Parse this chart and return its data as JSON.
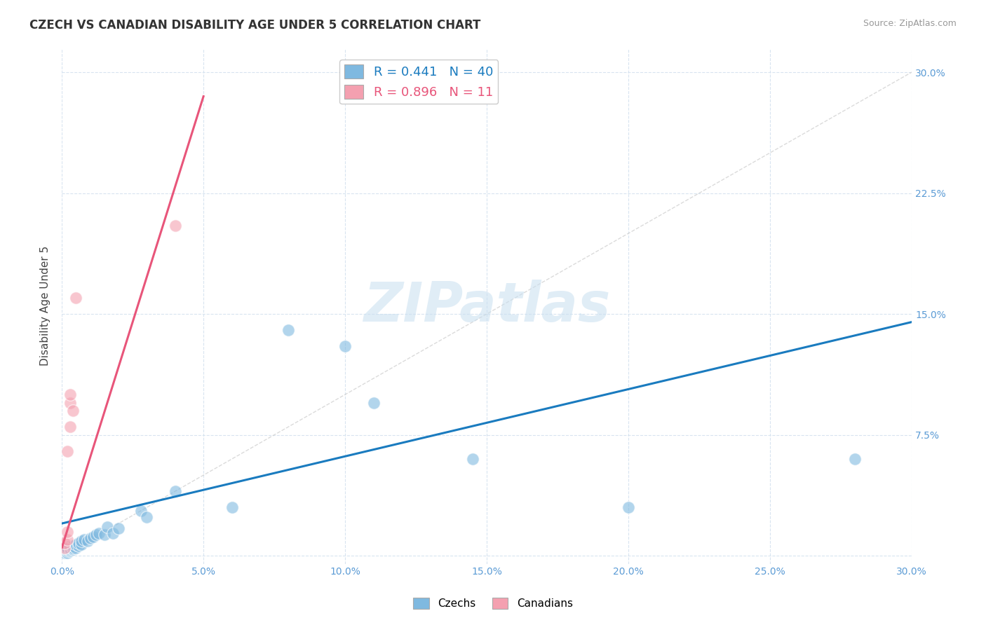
{
  "title": "CZECH VS CANADIAN DISABILITY AGE UNDER 5 CORRELATION CHART",
  "source": "Source: ZipAtlas.com",
  "ylabel": "Disability Age Under 5",
  "xmin": 0.0,
  "xmax": 0.3,
  "ymin": -0.005,
  "ymax": 0.315,
  "background_color": "#ffffff",
  "grid_color": "#d8e4f0",
  "legend_r1": "0.441",
  "legend_n1": "40",
  "legend_r2": "0.896",
  "legend_n2": "11",
  "blue_scatter_color": "#7fb9e0",
  "pink_scatter_color": "#f4a0b0",
  "blue_line_color": "#1a7bbf",
  "pink_line_color": "#e8557a",
  "diag_line_color": "#cccccc",
  "tick_label_color": "#5b9bd5",
  "ylabel_color": "#444444",
  "title_color": "#333333",
  "source_color": "#999999",
  "czechs_scatter": [
    [
      0.001,
      0.002
    ],
    [
      0.001,
      0.003
    ],
    [
      0.001,
      0.004
    ],
    [
      0.002,
      0.002
    ],
    [
      0.002,
      0.003
    ],
    [
      0.002,
      0.004
    ],
    [
      0.002,
      0.005
    ],
    [
      0.003,
      0.003
    ],
    [
      0.003,
      0.004
    ],
    [
      0.003,
      0.005
    ],
    [
      0.003,
      0.006
    ],
    [
      0.004,
      0.004
    ],
    [
      0.004,
      0.005
    ],
    [
      0.004,
      0.006
    ],
    [
      0.005,
      0.005
    ],
    [
      0.005,
      0.007
    ],
    [
      0.006,
      0.006
    ],
    [
      0.006,
      0.008
    ],
    [
      0.007,
      0.007
    ],
    [
      0.007,
      0.009
    ],
    [
      0.008,
      0.01
    ],
    [
      0.009,
      0.009
    ],
    [
      0.01,
      0.011
    ],
    [
      0.011,
      0.012
    ],
    [
      0.012,
      0.013
    ],
    [
      0.013,
      0.014
    ],
    [
      0.015,
      0.013
    ],
    [
      0.016,
      0.018
    ],
    [
      0.018,
      0.014
    ],
    [
      0.02,
      0.017
    ],
    [
      0.028,
      0.028
    ],
    [
      0.03,
      0.024
    ],
    [
      0.04,
      0.04
    ],
    [
      0.06,
      0.03
    ],
    [
      0.08,
      0.14
    ],
    [
      0.1,
      0.13
    ],
    [
      0.11,
      0.095
    ],
    [
      0.145,
      0.06
    ],
    [
      0.2,
      0.03
    ],
    [
      0.28,
      0.06
    ]
  ],
  "canadians_scatter": [
    [
      0.001,
      0.005
    ],
    [
      0.001,
      0.008
    ],
    [
      0.002,
      0.01
    ],
    [
      0.002,
      0.015
    ],
    [
      0.002,
      0.065
    ],
    [
      0.003,
      0.08
    ],
    [
      0.003,
      0.095
    ],
    [
      0.003,
      0.1
    ],
    [
      0.004,
      0.09
    ],
    [
      0.005,
      0.16
    ],
    [
      0.04,
      0.205
    ]
  ],
  "blue_line_x": [
    0.0,
    0.3
  ],
  "blue_line_y": [
    0.02,
    0.145
  ],
  "pink_line_x": [
    0.0,
    0.05
  ],
  "pink_line_y": [
    0.005,
    0.285
  ]
}
